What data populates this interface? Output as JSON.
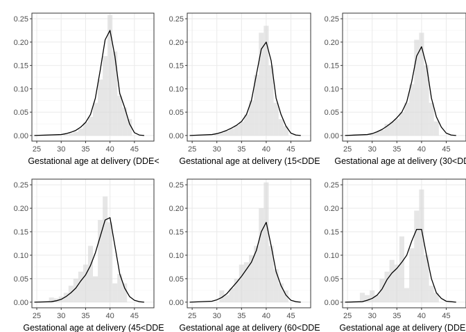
{
  "chart_data": [
    {
      "type": "histogram-density",
      "xlabel": "Gestational age at delivery (DDE<",
      "xlim": [
        24,
        49
      ],
      "ylim": [
        -0.012,
        0.262
      ],
      "x_ticks": [
        25,
        30,
        35,
        40,
        45
      ],
      "y_ticks": [
        "0.00",
        "0.05",
        "0.10",
        "0.15",
        "0.20",
        "0.25"
      ],
      "grid": true,
      "hist_x": [
        31,
        32,
        33,
        34,
        35,
        36,
        37,
        38,
        39,
        40,
        41,
        42,
        43,
        44
      ],
      "hist_y": [
        0.003,
        0.005,
        0.008,
        0.015,
        0.028,
        0.04,
        0.07,
        0.12,
        0.17,
        0.258,
        0.18,
        0.085,
        0.06,
        0.035
      ],
      "curve_x": [
        24.5,
        30,
        31,
        32,
        33,
        34,
        35,
        36,
        37,
        38,
        39,
        40,
        41,
        42,
        43,
        44,
        45,
        46,
        47
      ],
      "curve_y": [
        0,
        0.002,
        0.004,
        0.007,
        0.011,
        0.018,
        0.028,
        0.045,
        0.08,
        0.14,
        0.205,
        0.225,
        0.17,
        0.09,
        0.06,
        0.025,
        0.006,
        0.001,
        0
      ]
    },
    {
      "type": "histogram-density",
      "xlabel": "Gestational age at delivery (15<DDE",
      "xlim": [
        24,
        49
      ],
      "ylim": [
        -0.012,
        0.262
      ],
      "x_ticks": [
        25,
        30,
        35,
        40,
        45
      ],
      "y_ticks": [
        "0.00",
        "0.05",
        "0.10",
        "0.15",
        "0.20",
        "0.25"
      ],
      "grid": true,
      "hist_x": [
        30,
        31,
        32,
        33,
        34,
        35,
        36,
        37,
        38,
        39,
        40,
        41,
        42,
        43,
        44
      ],
      "hist_y": [
        0.004,
        0.006,
        0.01,
        0.015,
        0.022,
        0.03,
        0.045,
        0.075,
        0.13,
        0.22,
        0.235,
        0.15,
        0.07,
        0.035,
        0.02
      ],
      "curve_x": [
        24.5,
        29,
        30,
        31,
        32,
        33,
        34,
        35,
        36,
        37,
        38,
        39,
        40,
        41,
        42,
        43,
        44,
        45,
        46,
        47
      ],
      "curve_y": [
        0,
        0.002,
        0.004,
        0.007,
        0.011,
        0.016,
        0.022,
        0.03,
        0.045,
        0.075,
        0.13,
        0.185,
        0.2,
        0.16,
        0.08,
        0.045,
        0.02,
        0.005,
        0.001,
        0
      ]
    },
    {
      "type": "histogram-density",
      "xlabel": "Gestational age at delivery (30<DDE",
      "xlim": [
        24,
        49
      ],
      "ylim": [
        -0.012,
        0.262
      ],
      "x_ticks": [
        25,
        30,
        35,
        40,
        45
      ],
      "y_ticks": [
        "0.00",
        "0.05",
        "0.10",
        "0.15",
        "0.20",
        "0.25"
      ],
      "grid": true,
      "hist_x": [
        30,
        31,
        32,
        33,
        34,
        35,
        36,
        37,
        38,
        39,
        40,
        41,
        42,
        43
      ],
      "hist_y": [
        0.005,
        0.008,
        0.012,
        0.025,
        0.03,
        0.035,
        0.05,
        0.07,
        0.11,
        0.205,
        0.22,
        0.15,
        0.07,
        0.03
      ],
      "curve_x": [
        24.5,
        29,
        30,
        31,
        32,
        33,
        34,
        35,
        36,
        37,
        38,
        39,
        40,
        41,
        42,
        43,
        44,
        45,
        46,
        47
      ],
      "curve_y": [
        0,
        0.002,
        0.004,
        0.008,
        0.013,
        0.02,
        0.028,
        0.038,
        0.05,
        0.072,
        0.115,
        0.17,
        0.19,
        0.15,
        0.08,
        0.04,
        0.018,
        0.005,
        0.001,
        0
      ]
    },
    {
      "type": "histogram-density",
      "xlabel": "Gestational age at delivery (45<DDE",
      "xlim": [
        24,
        49
      ],
      "ylim": [
        -0.012,
        0.262
      ],
      "x_ticks": [
        25,
        30,
        35,
        40,
        45
      ],
      "y_ticks": [
        "0.00",
        "0.05",
        "0.10",
        "0.15",
        "0.20",
        "0.25"
      ],
      "grid": true,
      "hist_x": [
        28,
        29,
        30,
        31,
        32,
        33,
        34,
        35,
        36,
        37,
        38,
        39,
        40,
        41,
        42,
        43
      ],
      "hist_y": [
        0.01,
        0.008,
        0.012,
        0.02,
        0.035,
        0.05,
        0.065,
        0.08,
        0.12,
        0.055,
        0.175,
        0.225,
        0.17,
        0.04,
        0.06,
        0.04
      ],
      "curve_x": [
        24.5,
        28,
        29,
        30,
        31,
        32,
        33,
        34,
        35,
        36,
        37,
        38,
        39,
        40,
        41,
        42,
        43,
        44,
        45,
        46,
        47
      ],
      "curve_y": [
        0,
        0.001,
        0.003,
        0.006,
        0.012,
        0.02,
        0.03,
        0.045,
        0.058,
        0.078,
        0.105,
        0.14,
        0.175,
        0.18,
        0.12,
        0.06,
        0.03,
        0.012,
        0.004,
        0.001,
        0
      ]
    },
    {
      "type": "histogram-density",
      "xlabel": "Gestational age at delivery (60<DDE",
      "xlim": [
        24,
        49
      ],
      "ylim": [
        -0.012,
        0.262
      ],
      "x_ticks": [
        25,
        30,
        35,
        40,
        45
      ],
      "y_ticks": [
        "0.00",
        "0.05",
        "0.10",
        "0.15",
        "0.20",
        "0.25"
      ],
      "grid": true,
      "hist_x": [
        31,
        32,
        33,
        34,
        35,
        36,
        37,
        38,
        39,
        40,
        41,
        42,
        43,
        44
      ],
      "hist_y": [
        0.025,
        0.015,
        0.03,
        0.05,
        0.08,
        0.085,
        0.1,
        0.12,
        0.2,
        0.255,
        0.12,
        0.07,
        0.04,
        0.025
      ],
      "curve_x": [
        24.5,
        29,
        30,
        31,
        32,
        33,
        34,
        35,
        36,
        37,
        38,
        39,
        40,
        41,
        42,
        43,
        44,
        45,
        46,
        47
      ],
      "curve_y": [
        0,
        0.002,
        0.005,
        0.01,
        0.018,
        0.03,
        0.042,
        0.055,
        0.07,
        0.085,
        0.11,
        0.15,
        0.17,
        0.12,
        0.065,
        0.035,
        0.015,
        0.004,
        0.001,
        0
      ]
    },
    {
      "type": "histogram-density",
      "xlabel": "Gestational age at delivery (DDE>",
      "xlim": [
        24,
        49
      ],
      "ylim": [
        -0.012,
        0.262
      ],
      "x_ticks": [
        25,
        30,
        35,
        40,
        45
      ],
      "y_ticks": [
        "0.00",
        "0.05",
        "0.10",
        "0.15",
        "0.20",
        "0.25"
      ],
      "grid": true,
      "hist_x": [
        28,
        29,
        30,
        31,
        32,
        33,
        34,
        35,
        36,
        37,
        38,
        39,
        40,
        41,
        42,
        43
      ],
      "hist_y": [
        0.02,
        0.015,
        0.025,
        0.015,
        0.05,
        0.065,
        0.09,
        0.08,
        0.14,
        0.03,
        0.115,
        0.195,
        0.24,
        0.1,
        0.035,
        0.02
      ],
      "curve_x": [
        24.5,
        28,
        29,
        30,
        31,
        32,
        33,
        34,
        35,
        36,
        37,
        38,
        39,
        40,
        41,
        42,
        43,
        44,
        45,
        46,
        47
      ],
      "curve_y": [
        0,
        0.001,
        0.004,
        0.008,
        0.015,
        0.028,
        0.048,
        0.062,
        0.072,
        0.085,
        0.1,
        0.13,
        0.155,
        0.155,
        0.1,
        0.05,
        0.02,
        0.008,
        0.002,
        0.001,
        0
      ]
    }
  ]
}
